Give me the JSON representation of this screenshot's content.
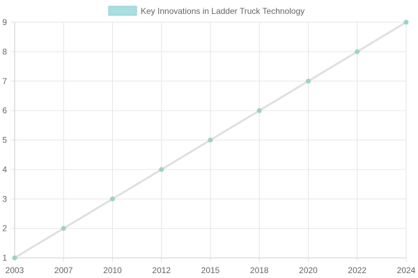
{
  "chart_data": {
    "type": "line",
    "legend": {
      "position": "top",
      "label": "Key Innovations in Ladder Truck Technology"
    },
    "x": [
      "2003",
      "2007",
      "2010",
      "2012",
      "2015",
      "2018",
      "2020",
      "2022",
      "2024"
    ],
    "series": [
      {
        "name": "Key Innovations in Ladder Truck Technology",
        "values": [
          1,
          2,
          3,
          4,
          5,
          6,
          7,
          8,
          9
        ]
      }
    ],
    "yticks": [
      1,
      2,
      3,
      4,
      5,
      6,
      7,
      8,
      9
    ],
    "ylim": [
      1,
      9
    ],
    "grid": true,
    "colors": {
      "line": "#e0e0e0",
      "point": "#9ed2c2",
      "legend_fill": "#a8dfe0",
      "legend_border": "#8ecfd0",
      "grid": "#e6e6e6",
      "axis": "#cccccc",
      "text": "#666666"
    }
  }
}
